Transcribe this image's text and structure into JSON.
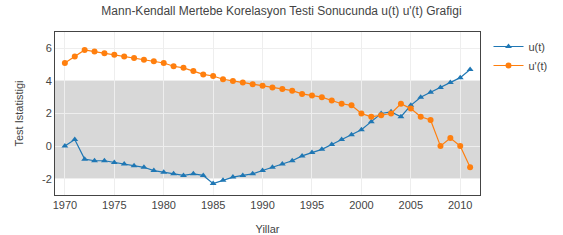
{
  "chart_data": {
    "type": "line",
    "title": "Mann-Kendall Mertebe Korelasyon Testi Sonucunda u(t) u'(t) Grafigi",
    "x_label": "Yillar",
    "y_label": "Test Istatistigi",
    "x": [
      1970,
      1971,
      1972,
      1973,
      1974,
      1975,
      1976,
      1977,
      1978,
      1979,
      1980,
      1981,
      1982,
      1983,
      1984,
      1985,
      1986,
      1987,
      1988,
      1989,
      1990,
      1991,
      1992,
      1993,
      1994,
      1995,
      1996,
      1997,
      1998,
      1999,
      2000,
      2001,
      2002,
      2003,
      2004,
      2005,
      2006,
      2007,
      2008,
      2009,
      2010,
      2011
    ],
    "series": [
      {
        "name": "u(t)",
        "marker": "triangle-up",
        "values": [
          0.0,
          0.4,
          -0.8,
          -0.9,
          -0.9,
          -1.0,
          -1.1,
          -1.2,
          -1.3,
          -1.5,
          -1.6,
          -1.7,
          -1.8,
          -1.7,
          -1.8,
          -2.3,
          -2.1,
          -1.9,
          -1.8,
          -1.7,
          -1.5,
          -1.3,
          -1.1,
          -0.9,
          -0.6,
          -0.4,
          -0.2,
          0.1,
          0.4,
          0.7,
          1.0,
          1.5,
          2.0,
          2.1,
          1.8,
          2.5,
          3.0,
          3.3,
          3.6,
          3.9,
          4.2,
          4.7
        ]
      },
      {
        "name": "u'(t)",
        "marker": "circle",
        "values": [
          5.1,
          5.5,
          5.9,
          5.8,
          5.7,
          5.6,
          5.5,
          5.4,
          5.3,
          5.2,
          5.1,
          4.9,
          4.8,
          4.6,
          4.4,
          4.3,
          4.1,
          4.0,
          3.9,
          3.8,
          3.7,
          3.6,
          3.5,
          3.4,
          3.2,
          3.1,
          3.0,
          2.8,
          2.6,
          2.5,
          2.0,
          1.8,
          1.9,
          2.0,
          2.6,
          2.3,
          1.8,
          1.6,
          0.0,
          0.5,
          0.0,
          -1.3
        ]
      }
    ],
    "bands": [
      {
        "from": -2,
        "to": 4,
        "color": "#d8d8d8"
      }
    ],
    "xlim": [
      1969,
      2012
    ],
    "xticks": [
      1970,
      1975,
      1980,
      1985,
      1990,
      1995,
      2000,
      2005,
      2010
    ],
    "ylim": [
      -3,
      7
    ],
    "yticks": [
      -2,
      0,
      2,
      4,
      6
    ],
    "grid": true,
    "legend": "right"
  }
}
